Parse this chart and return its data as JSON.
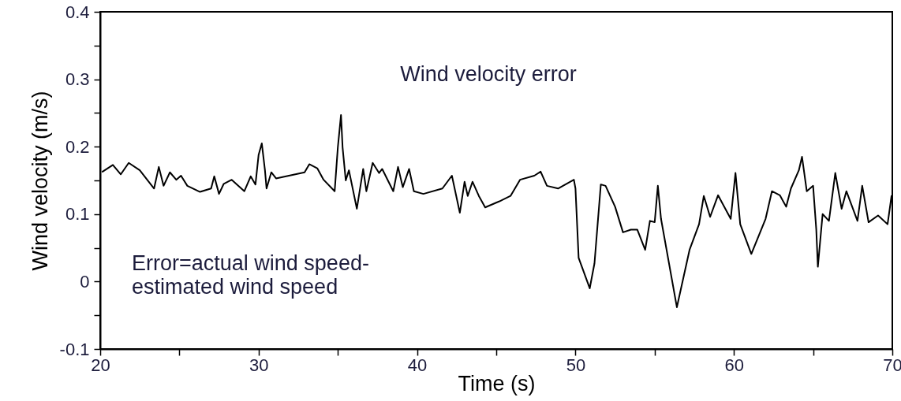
{
  "chart_data": {
    "type": "line",
    "title": "Wind velocity error",
    "xlabel": "Time  (s)",
    "ylabel": "Wind velocity (m/s)",
    "annotations": [
      "Error=actual wind speed-\nestimated wind speed"
    ],
    "x": [
      20.15,
      20.8,
      21.3,
      21.8,
      22.5,
      23.4,
      23.7,
      24.0,
      24.4,
      24.8,
      25.1,
      25.5,
      26.3,
      27.0,
      27.2,
      27.5,
      27.8,
      28.3,
      29.1,
      29.5,
      29.8,
      30.0,
      30.2,
      30.4,
      30.5,
      30.8,
      31.1,
      32.9,
      33.2,
      33.7,
      34.1,
      34.8,
      35.0,
      35.2,
      35.3,
      35.5,
      35.7,
      36.2,
      36.6,
      36.8,
      37.2,
      37.6,
      37.8,
      38.5,
      38.8,
      39.1,
      39.5,
      39.8,
      40.4,
      41.6,
      42.2,
      42.7,
      43.0,
      43.2,
      43.5,
      43.9,
      44.3,
      45.2,
      45.9,
      46.5,
      47.4,
      47.8,
      48.2,
      48.9,
      49.9,
      50.0,
      50.2,
      50.9,
      51.2,
      51.6,
      51.9,
      52.5,
      53.0,
      53.5,
      53.9,
      54.4,
      54.7,
      55.0,
      55.2,
      55.4,
      56.4,
      57.2,
      57.8,
      58.1,
      58.5,
      59.0,
      59.8,
      60.1,
      60.4,
      61.1,
      62.0,
      62.4,
      62.9,
      63.3,
      63.6,
      64.1,
      64.3,
      64.6,
      65.0,
      65.2,
      65.3,
      65.6,
      66.0,
      66.4,
      66.8,
      67.1,
      67.8,
      68.1,
      68.5,
      69.1,
      69.7,
      69.95
    ],
    "series": [
      {
        "color": "#000000",
        "values": [
          0.163,
          0.173,
          0.159,
          0.176,
          0.165,
          0.138,
          0.17,
          0.142,
          0.162,
          0.151,
          0.157,
          0.142,
          0.133,
          0.138,
          0.156,
          0.13,
          0.145,
          0.151,
          0.134,
          0.156,
          0.144,
          0.188,
          0.205,
          0.165,
          0.138,
          0.162,
          0.153,
          0.162,
          0.174,
          0.168,
          0.151,
          0.134,
          0.199,
          0.247,
          0.199,
          0.15,
          0.165,
          0.108,
          0.167,
          0.134,
          0.176,
          0.161,
          0.167,
          0.134,
          0.17,
          0.14,
          0.167,
          0.134,
          0.13,
          0.138,
          0.157,
          0.102,
          0.148,
          0.127,
          0.148,
          0.127,
          0.11,
          0.119,
          0.127,
          0.151,
          0.157,
          0.163,
          0.142,
          0.138,
          0.151,
          0.138,
          0.035,
          -0.01,
          0.027,
          0.144,
          0.142,
          0.111,
          0.073,
          0.077,
          0.077,
          0.047,
          0.09,
          0.088,
          0.142,
          0.093,
          -0.038,
          0.047,
          0.085,
          0.127,
          0.096,
          0.128,
          0.093,
          0.161,
          0.085,
          0.041,
          0.093,
          0.134,
          0.128,
          0.111,
          0.138,
          0.165,
          0.185,
          0.134,
          0.142,
          0.077,
          0.022,
          0.1,
          0.09,
          0.161,
          0.108,
          0.134,
          0.09,
          0.142,
          0.088,
          0.098,
          0.085,
          0.127
        ]
      }
    ],
    "xlim": [
      20,
      70
    ],
    "xticks": [
      20,
      {
        "value": 25,
        "label": null
      },
      30,
      {
        "value": 35,
        "label": null
      },
      40,
      {
        "value": 45,
        "label": null
      },
      50,
      {
        "value": 55,
        "label": null
      },
      60,
      {
        "value": 65,
        "label": null
      },
      70
    ],
    "ylim": [
      -0.1,
      0.4
    ],
    "yticks": [
      -0.1,
      {
        "value": -0.05,
        "label": null
      },
      0,
      {
        "value": 0.05,
        "label": null
      },
      0.1,
      {
        "value": 0.15,
        "label": null
      },
      0.2,
      {
        "value": 0.25,
        "label": null
      },
      0.3,
      {
        "value": 0.35,
        "label": null
      },
      0.4
    ],
    "grid": false,
    "line_style": "solid",
    "marker": "none"
  }
}
